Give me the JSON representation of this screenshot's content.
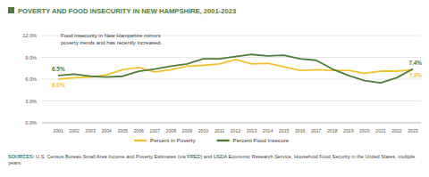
{
  "chart_data": {
    "type": "line",
    "title": "POVERTY AND FOOD INSECURITY IN NEW HAMPSHIRE, 2001-2023",
    "annotation": "Food insecurity in New Hampshire mirrors poverty trends and has recently increased.",
    "source": "SOURCES: U.S. Census Bureau Small Area Income and Poverty Estimates (via FRED) and USDA Economic Research Service, Household Food Security in the United States, multiple years.",
    "x": [
      2001,
      2002,
      2003,
      2004,
      2005,
      2006,
      2007,
      2008,
      2009,
      2010,
      2011,
      2012,
      2013,
      2014,
      2015,
      2016,
      2017,
      2018,
      2019,
      2020,
      2021,
      2022,
      2023
    ],
    "series": [
      {
        "name": "Percent in Poverty",
        "color": "#f2c230",
        "values": [
          6.0,
          6.2,
          6.3,
          6.6,
          7.3,
          7.6,
          7.0,
          7.3,
          7.8,
          7.9,
          8.1,
          8.7,
          8.1,
          8.2,
          7.7,
          7.2,
          7.3,
          7.2,
          7.2,
          6.8,
          7.1,
          7.1,
          7.3
        ],
        "value_labels": [
          "6.0%",
          null,
          null,
          null,
          null,
          null,
          null,
          null,
          null,
          null,
          null,
          null,
          null,
          null,
          null,
          null,
          null,
          null,
          null,
          null,
          null,
          null,
          "7.3%"
        ]
      },
      {
        "name": "Percent Food Insecure",
        "color": "#4e7d3a",
        "values": [
          6.5,
          6.7,
          6.4,
          6.3,
          6.4,
          7.1,
          7.4,
          7.8,
          8.1,
          8.8,
          8.8,
          9.1,
          9.4,
          9.2,
          9.3,
          8.8,
          8.6,
          7.4,
          6.5,
          5.8,
          5.5,
          6.2,
          7.4
        ],
        "value_labels": [
          "6.5%",
          null,
          null,
          null,
          null,
          null,
          null,
          null,
          null,
          null,
          null,
          null,
          null,
          null,
          null,
          null,
          null,
          null,
          null,
          null,
          null,
          null,
          "7.4%"
        ]
      }
    ],
    "xlim": [
      2000,
      2023.5
    ],
    "xticks": [
      2001,
      2002,
      2003,
      2004,
      2005,
      2006,
      2007,
      2008,
      2009,
      2010,
      2011,
      2012,
      2013,
      2014,
      2015,
      2016,
      2017,
      2018,
      2019,
      2020,
      2021,
      2022,
      2023
    ],
    "ylim": [
      0,
      12
    ],
    "yticks": [
      {
        "value": 0,
        "label": "0.0%"
      },
      {
        "value": 3,
        "label": "3.0%"
      },
      {
        "value": 6,
        "label": "6.0%"
      },
      {
        "value": 9,
        "label": "9.0%"
      },
      {
        "value": 12,
        "label": "12.0%"
      }
    ],
    "grid": true,
    "legend": "bottom"
  }
}
